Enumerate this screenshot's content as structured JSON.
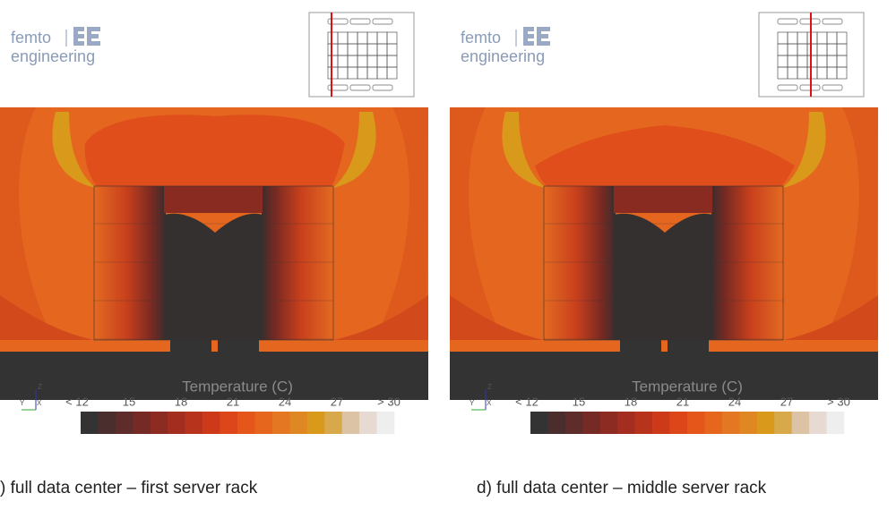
{
  "panels": [
    {
      "logo": {
        "line1": "femto",
        "line2": "engineering"
      },
      "legend": {
        "title": "Temperature (C)",
        "labels": [
          "< 12",
          "15",
          "18",
          "21",
          "24",
          "27",
          "> 30"
        ]
      },
      "axes": {
        "z": "Z",
        "y": "Y",
        "x": "X"
      },
      "caption": ") full data center – first server rack"
    },
    {
      "logo": {
        "line1": "femto",
        "line2": "engineering"
      },
      "legend": {
        "title": "Temperature (C)",
        "labels": [
          "< 12",
          "15",
          "18",
          "21",
          "24",
          "27",
          "> 30"
        ]
      },
      "axes": {
        "z": "Z",
        "y": "Y",
        "x": "X"
      },
      "caption": "d) full data center – middle server rack"
    }
  ]
}
